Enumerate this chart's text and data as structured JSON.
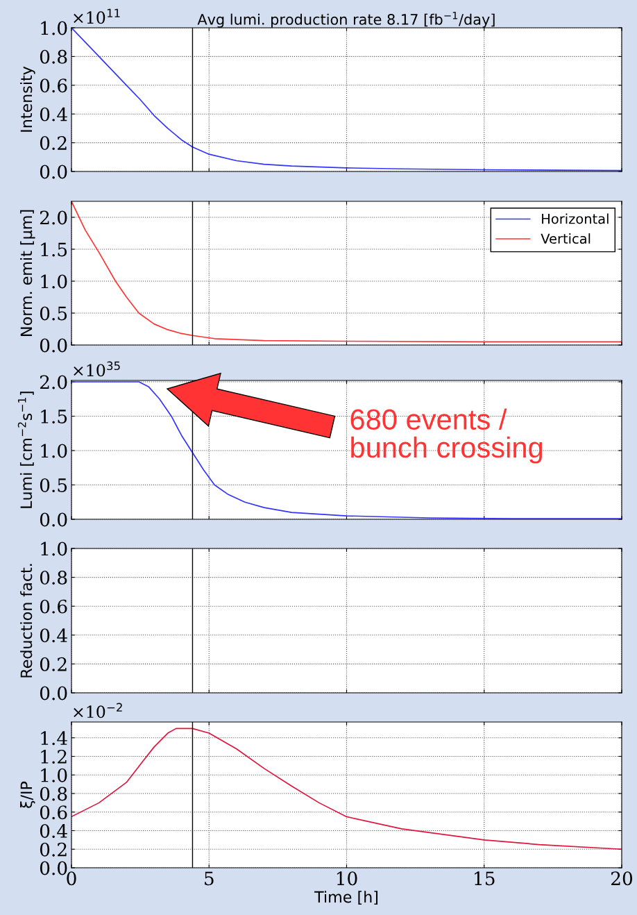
{
  "chart_data": [
    {
      "type": "line",
      "title": "Avg lumi. production rate 8.17 [fb$^{−1}$/day]",
      "ylabel": "Intensity",
      "annotations": [
        "×10$^{11}$"
      ],
      "x": [
        0,
        1,
        2,
        2.5,
        3,
        3.5,
        4,
        4.4,
        5,
        6,
        7,
        8,
        10,
        12,
        15,
        20
      ],
      "series": [
        {
          "color": "#3333ff",
          "values": [
            1.0,
            0.8,
            0.6,
            0.5,
            0.39,
            0.3,
            0.22,
            0.17,
            0.12,
            0.075,
            0.05,
            0.038,
            0.025,
            0.018,
            0.012,
            0.007
          ]
        }
      ],
      "xlim": [
        0,
        20
      ],
      "xticks": [
        0,
        5,
        10,
        15,
        20
      ],
      "ylim": [
        0,
        1.0
      ],
      "yticks": [
        {
          "value": 0,
          "label": "0.0"
        },
        0.2,
        0.4,
        0.6,
        0.8,
        {
          "value": 1,
          "label": "1.0"
        }
      ],
      "grid": true,
      "tick_labels": "y",
      "ref_lines": [
        {
          "axis": "x",
          "value": 4.4,
          "color": "#000000"
        }
      ]
    },
    {
      "type": "line",
      "ylabel": "Norm. emit [μm]",
      "x": [
        0,
        0.5,
        1,
        1.6,
        2,
        2.45,
        3,
        3.5,
        4,
        4.4,
        5.2,
        7,
        10,
        15,
        20
      ],
      "series": [
        {
          "name": "Horizontal",
          "color": "#3333ff",
          "values": [
            null,
            null,
            null,
            null,
            null,
            null,
            null,
            null,
            null,
            null,
            null,
            null,
            null,
            null,
            null
          ]
        },
        {
          "name": "Vertical",
          "color": "#ff3333",
          "values": [
            2.25,
            1.8,
            1.45,
            1.0,
            0.75,
            0.5,
            0.33,
            0.24,
            0.18,
            0.15,
            0.1,
            0.07,
            0.06,
            0.05,
            0.05
          ]
        }
      ],
      "xlim": [
        0,
        20
      ],
      "xticks": [
        0,
        5,
        10,
        15,
        20
      ],
      "ylim": [
        0,
        2.25
      ],
      "yticks": [
        {
          "value": 0,
          "label": "0.0"
        },
        0.5,
        {
          "value": 1,
          "label": "1.0"
        },
        1.5,
        {
          "value": 2,
          "label": "2.0"
        }
      ],
      "grid": true,
      "legend": "top right",
      "tick_labels": "y",
      "ref_lines": [
        {
          "axis": "x",
          "value": 4.4,
          "color": "#000000"
        }
      ]
    },
    {
      "type": "line",
      "ylabel": "Lumi [cm$^{−2}$s$^{−1}$]",
      "annotations": [
        "×10$^{35}$",
        "680 events /\nbunch crossing"
      ],
      "x": [
        0,
        2.45,
        2.8,
        3.2,
        3.63,
        4.0,
        4.4,
        4.8,
        5.2,
        5.7,
        6.3,
        7,
        8,
        10,
        13,
        16,
        20
      ],
      "series": [
        {
          "color": "#3333ff",
          "values": [
            2.0,
            2.0,
            1.93,
            1.75,
            1.5,
            1.22,
            0.97,
            0.72,
            0.5,
            0.36,
            0.25,
            0.17,
            0.1,
            0.05,
            0.02,
            0.01,
            0.01
          ]
        }
      ],
      "xlim": [
        0,
        20
      ],
      "xticks": [
        0,
        5,
        10,
        15,
        20
      ],
      "ylim": [
        0,
        2.02
      ],
      "yticks": [
        {
          "value": 0,
          "label": "0.0"
        },
        0.5,
        {
          "value": 1,
          "label": "1.0"
        },
        1.5,
        {
          "value": 2,
          "label": "2.0"
        }
      ],
      "grid": true,
      "tick_labels": "y",
      "ref_lines": [
        {
          "axis": "x",
          "value": 4.4,
          "color": "#000000"
        }
      ]
    },
    {
      "type": "line",
      "ylabel": "Reduction fact.",
      "xlim": [
        0,
        20
      ],
      "xticks": [
        0,
        5,
        10,
        15,
        20
      ],
      "ylim": [
        0,
        1.0
      ],
      "yticks": [
        {
          "value": 0,
          "label": "0.0"
        },
        0.2,
        0.4,
        0.6,
        0.8,
        {
          "value": 1,
          "label": "1.0"
        }
      ],
      "grid": true,
      "tick_labels": "y",
      "ref_lines": [
        {
          "axis": "x",
          "value": 4.4,
          "color": "#000000"
        }
      ]
    },
    {
      "type": "line",
      "ylabel": "ξ/IP",
      "xlabel": "Time [h]",
      "annotations": [
        "×10$^{−2}$"
      ],
      "x": [
        0,
        1,
        2,
        2.6,
        3,
        3.5,
        3.8,
        4.4,
        5,
        6,
        7,
        8,
        9,
        10,
        12,
        15,
        17,
        20
      ],
      "series": [
        {
          "color": "#e0143c",
          "values": [
            0.55,
            0.7,
            0.92,
            1.15,
            1.3,
            1.45,
            1.5,
            1.5,
            1.45,
            1.28,
            1.07,
            0.88,
            0.7,
            0.55,
            0.42,
            0.3,
            0.25,
            0.2
          ]
        }
      ],
      "xlim": [
        0,
        20
      ],
      "xticks": [
        0,
        5,
        10,
        15,
        20
      ],
      "ylim": [
        0,
        1.57
      ],
      "yticks": [
        {
          "value": 0,
          "label": "0.0"
        },
        0.2,
        0.4,
        0.6,
        0.8,
        {
          "value": 1,
          "label": "1.0"
        },
        1.2,
        1.4
      ],
      "grid": true,
      "ref_lines": [
        {
          "axis": "x",
          "value": 4.4,
          "color": "#000000"
        }
      ]
    }
  ]
}
